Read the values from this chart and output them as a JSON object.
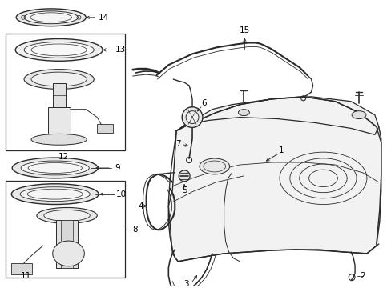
{
  "bg_color": "#ffffff",
  "line_color": "#2a2a2a",
  "fig_width": 4.89,
  "fig_height": 3.6,
  "dpi": 100,
  "font_size": 7.5
}
